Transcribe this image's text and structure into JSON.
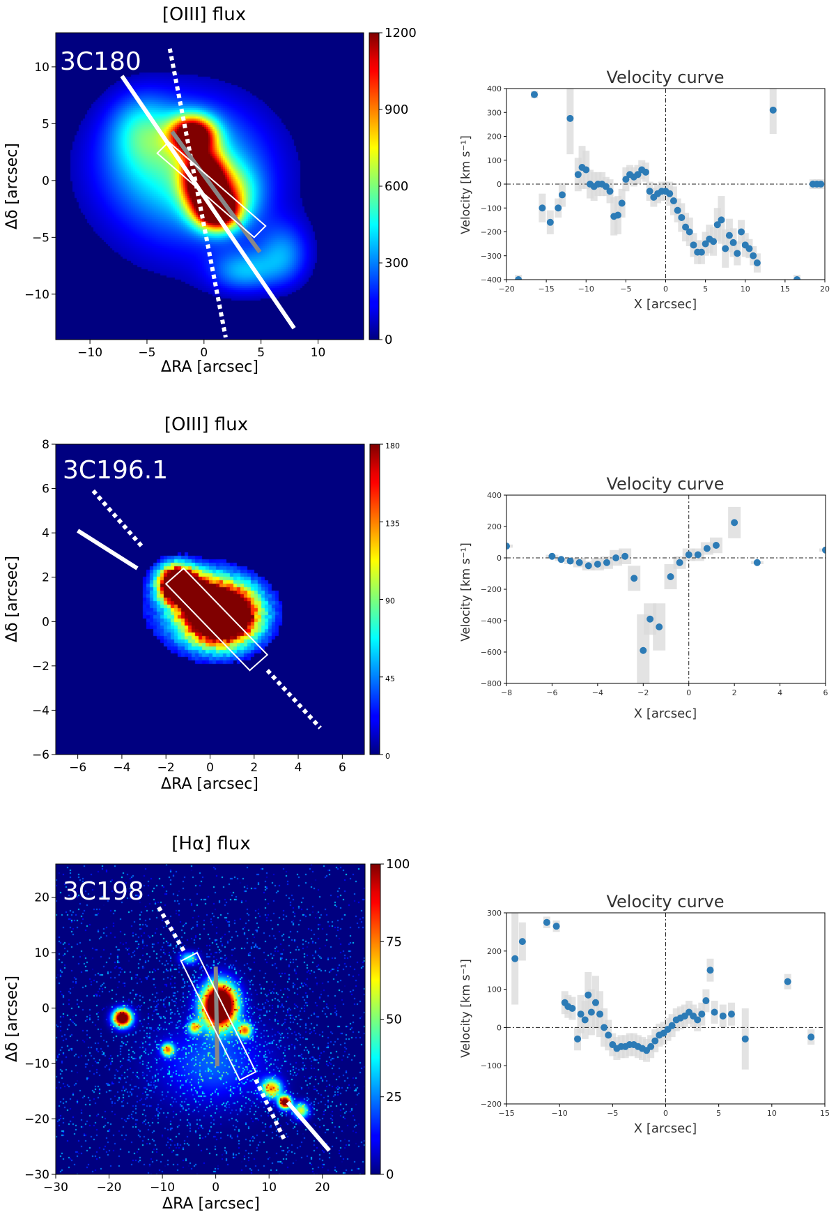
{
  "chart_data": [
    {
      "type": "heatmap",
      "title": "[OIII] flux",
      "object_label": "3C180",
      "xlabel": "ΔRA [arcsec]",
      "ylabel": "Δδ [arcsec]",
      "xlim": [
        -13,
        14
      ],
      "ylim": [
        -14,
        13
      ],
      "xticks": [
        -10,
        -5,
        0,
        5,
        10
      ],
      "yticks": [
        -10,
        -5,
        0,
        5,
        10
      ],
      "colorbar": {
        "range": [
          0,
          1200
        ],
        "ticks": [
          0,
          300,
          600,
          900,
          1200
        ]
      },
      "colormap": "jet",
      "overlays": {
        "solid_line": [
          [
            -7.2,
            9.2
          ],
          [
            7.9,
            -13.0
          ]
        ],
        "dotted_line": [
          [
            -3.0,
            11.6
          ],
          [
            1.9,
            -13.8
          ]
        ],
        "gray_line": [
          [
            -2.8,
            4.3
          ],
          [
            4.9,
            -6.3
          ]
        ],
        "slit_box": [
          [
            -4.1,
            2.4
          ],
          [
            -3.1,
            3.4
          ],
          [
            5.4,
            -4.0
          ],
          [
            4.4,
            -5.0
          ]
        ]
      },
      "blobs": [
        {
          "x": -1.0,
          "y": -0.5,
          "sx": 5.5,
          "sy": 5.0,
          "a": 260
        },
        {
          "x": -5.5,
          "y": 4.5,
          "sx": 1.9,
          "sy": 2.2,
          "a": 260
        },
        {
          "x": -2.5,
          "y": 2.0,
          "sx": 4.5,
          "sy": 3.5,
          "a": 300
        },
        {
          "x": -1.0,
          "y": 4.0,
          "sx": 1.3,
          "sy": 1.1,
          "a": 1250
        },
        {
          "x": 0.0,
          "y": 0.0,
          "sx": 1.2,
          "sy": 1.7,
          "a": 1300
        },
        {
          "x": 1.2,
          "y": -2.7,
          "sx": 1.2,
          "sy": 1.1,
          "a": 1200
        },
        {
          "x": 2.0,
          "y": -1.2,
          "sx": 1.8,
          "sy": 1.8,
          "a": 500
        },
        {
          "x": 3.5,
          "y": -8.0,
          "sx": 2.0,
          "sy": 1.3,
          "a": 300
        },
        {
          "x": 7.0,
          "y": -6.5,
          "sx": 1.6,
          "sy": 1.9,
          "a": 280
        }
      ]
    },
    {
      "type": "scatter",
      "title": "Velocity curve",
      "xlabel": "X [arcsec]",
      "ylabel": "Velocity [km s⁻¹]",
      "xlim": [
        -20,
        20
      ],
      "ylim": [
        -400,
        400
      ],
      "xticks": [
        -20,
        -15,
        -10,
        -5,
        0,
        5,
        10,
        15,
        20
      ],
      "yticks": [
        -400,
        -300,
        -200,
        -100,
        0,
        100,
        200,
        300,
        400
      ],
      "x": [
        -18.5,
        -16.5,
        -15.5,
        -14.5,
        -13.5,
        -13,
        -12,
        -11,
        -10.5,
        -10,
        -9.5,
        -9,
        -8.5,
        -8,
        -7.5,
        -7,
        -6.5,
        -6,
        -5.5,
        -5,
        -4.5,
        -4,
        -3.5,
        -3,
        -2.5,
        -2,
        -1.5,
        -1,
        -0.5,
        0,
        0.5,
        1,
        1.5,
        2,
        2.5,
        3,
        3.5,
        4,
        4.5,
        5,
        5.5,
        6,
        6.5,
        7,
        7.5,
        8,
        8.5,
        9,
        9.5,
        10,
        10.5,
        11,
        11.5,
        13.5,
        16.5,
        18.5,
        19,
        19.5
      ],
      "y": [
        -400,
        375,
        -100,
        -160,
        -100,
        -45,
        275,
        40,
        70,
        60,
        0,
        -10,
        0,
        0,
        -10,
        -30,
        -135,
        -130,
        -80,
        20,
        40,
        30,
        40,
        60,
        50,
        -30,
        -55,
        -40,
        -30,
        -30,
        -40,
        -70,
        -110,
        -140,
        -180,
        -200,
        -255,
        -285,
        -285,
        -250,
        -230,
        -240,
        -170,
        -150,
        -270,
        -215,
        -245,
        -290,
        -200,
        -255,
        -270,
        -300,
        -330,
        310,
        -400,
        0,
        0,
        0
      ],
      "err": [
        20,
        15,
        60,
        50,
        40,
        50,
        150,
        70,
        90,
        80,
        60,
        60,
        50,
        50,
        40,
        50,
        80,
        80,
        60,
        50,
        40,
        40,
        40,
        40,
        40,
        40,
        40,
        40,
        40,
        40,
        50,
        60,
        50,
        60,
        60,
        60,
        50,
        50,
        50,
        50,
        60,
        60,
        70,
        100,
        80,
        70,
        60,
        50,
        50,
        50,
        40,
        40,
        40,
        100,
        20,
        20,
        20,
        20
      ]
    },
    {
      "type": "heatmap",
      "title": "[OIII] flux",
      "object_label": "3C196.1",
      "xlabel": "ΔRA [arcsec]",
      "ylabel": "Δδ [arcsec]",
      "xlim": [
        -7,
        7
      ],
      "ylim": [
        -6,
        8
      ],
      "xticks": [
        -6,
        -4,
        -2,
        0,
        2,
        4,
        6
      ],
      "yticks": [
        -6,
        -4,
        -2,
        0,
        2,
        4,
        6,
        8
      ],
      "colorbar": {
        "range": [
          0,
          180
        ],
        "ticks": [
          0,
          45,
          90,
          135,
          180
        ]
      },
      "colormap": "jet",
      "pixelated": true,
      "overlays": {
        "solid_line": [
          [
            -6.0,
            4.1
          ],
          [
            -3.3,
            2.4
          ]
        ],
        "dotted_line": [
          [
            -5.3,
            5.9
          ],
          [
            -3.1,
            3.4
          ]
        ],
        "dotted_line_2": [
          [
            2.6,
            -2.2
          ],
          [
            5.0,
            -4.8
          ]
        ],
        "slit_box": [
          [
            -2.0,
            1.7
          ],
          [
            -1.2,
            2.4
          ],
          [
            2.6,
            -1.5
          ],
          [
            1.8,
            -2.2
          ]
        ]
      },
      "blobs": [
        {
          "x": -0.5,
          "y": 0.6,
          "sx": 2.2,
          "sy": 1.5,
          "a": 40
        },
        {
          "x": 0.5,
          "y": 0.3,
          "sx": 1.1,
          "sy": 0.9,
          "a": 320
        },
        {
          "x": -1.5,
          "y": 1.7,
          "sx": 0.55,
          "sy": 0.55,
          "a": 280
        },
        {
          "x": -0.5,
          "y": 1.2,
          "sx": 0.6,
          "sy": 0.6,
          "a": 120
        }
      ]
    },
    {
      "type": "scatter",
      "title": "Velocity curve",
      "xlabel": "X [arcsec]",
      "ylabel": "Velocity [km s⁻¹]",
      "xlim": [
        -8,
        6
      ],
      "ylim": [
        -800,
        400
      ],
      "xticks": [
        -8,
        -6,
        -4,
        -2,
        0,
        2,
        4,
        6
      ],
      "yticks": [
        -800,
        -600,
        -400,
        -200,
        0,
        200,
        400
      ],
      "x": [
        -8,
        -6,
        -5.6,
        -5.2,
        -4.8,
        -4.4,
        -4,
        -3.6,
        -3.2,
        -2.8,
        -2.4,
        -2,
        -1.7,
        -1.3,
        -0.8,
        -0.4,
        0,
        0.4,
        0.8,
        1.2,
        2,
        3,
        6
      ],
      "y": [
        75,
        10,
        -10,
        -20,
        -30,
        -50,
        -40,
        -30,
        0,
        10,
        -130,
        -590,
        -390,
        -440,
        -120,
        -30,
        20,
        20,
        60,
        80,
        225,
        -30,
        50
      ],
      "err": [
        10,
        10,
        10,
        20,
        30,
        30,
        40,
        40,
        50,
        50,
        80,
        230,
        100,
        150,
        80,
        40,
        40,
        40,
        40,
        50,
        100,
        10,
        10
      ]
    },
    {
      "type": "heatmap",
      "title": "[Hα] flux",
      "object_label": "3C198",
      "xlabel": "ΔRA [arcsec]",
      "ylabel": "Δδ [arcsec]",
      "xlim": [
        -30,
        28
      ],
      "ylim": [
        -30,
        26
      ],
      "xticks": [
        -30,
        -20,
        -10,
        0,
        10,
        20
      ],
      "yticks": [
        -30,
        -20,
        -10,
        0,
        10,
        20
      ],
      "colorbar": {
        "range": [
          0,
          100
        ],
        "ticks": [
          0,
          25,
          50,
          75,
          100
        ]
      },
      "colormap": "jet",
      "noisy": true,
      "overlays": {
        "solid_line": [
          [
            13.5,
            -17.0
          ],
          [
            21.3,
            -25.7
          ]
        ],
        "dotted_line": [
          [
            -10.7,
            18.2
          ],
          [
            -5.8,
            10.0
          ]
        ],
        "dotted_line_2": [
          [
            7.5,
            -12.9
          ],
          [
            13.0,
            -24.0
          ]
        ],
        "gray_line": [
          [
            0.0,
            7.5
          ],
          [
            0.3,
            -10.5
          ]
        ],
        "slit_box": [
          [
            -6.5,
            8.5
          ],
          [
            -3.5,
            10.0
          ],
          [
            7.5,
            -11.5
          ],
          [
            4.5,
            -13.0
          ]
        ]
      },
      "blobs": [
        {
          "x": -17.5,
          "y": -1.8,
          "sx": 1.2,
          "sy": 1.1,
          "a": 130
        },
        {
          "x": 0.7,
          "y": 0.5,
          "sx": 2.2,
          "sy": 2.7,
          "a": 160
        },
        {
          "x": -0.5,
          "y": -10.0,
          "sx": 7.0,
          "sy": 5.0,
          "a": 22
        },
        {
          "x": 5.5,
          "y": -4.0,
          "sx": 0.9,
          "sy": 0.9,
          "a": 70
        },
        {
          "x": 13.0,
          "y": -17.0,
          "sx": 0.8,
          "sy": 0.8,
          "a": 120
        },
        {
          "x": 10.5,
          "y": -14.5,
          "sx": 1.3,
          "sy": 1.2,
          "a": 70
        },
        {
          "x": 16.0,
          "y": -18.5,
          "sx": 1.0,
          "sy": 1.0,
          "a": 60
        },
        {
          "x": -9.0,
          "y": -7.5,
          "sx": 0.8,
          "sy": 0.8,
          "a": 70
        },
        {
          "x": -4.0,
          "y": -3.5,
          "sx": 0.8,
          "sy": 0.8,
          "a": 60
        },
        {
          "x": -5.0,
          "y": 9.0,
          "sx": 1.2,
          "sy": 0.8,
          "a": 40
        }
      ]
    },
    {
      "type": "scatter",
      "title": "Velocity curve",
      "xlabel": "X [arcsec]",
      "ylabel": "Velocity [km s⁻¹]",
      "xlim": [
        -15,
        15
      ],
      "ylim": [
        -200,
        300
      ],
      "xticks": [
        -15,
        -10,
        -5,
        0,
        5,
        10,
        15
      ],
      "yticks": [
        -200,
        -100,
        0,
        100,
        200,
        300
      ],
      "x": [
        -14.2,
        -13.5,
        -11.2,
        -10.3,
        -9.5,
        -9.2,
        -8.8,
        -8.3,
        -8,
        -7.6,
        -7.3,
        -7,
        -6.6,
        -6.2,
        -5.8,
        -5.4,
        -5,
        -4.6,
        -4.2,
        -3.8,
        -3.4,
        -3,
        -2.6,
        -2.2,
        -1.8,
        -1.4,
        -1,
        -0.6,
        -0.2,
        0.2,
        0.6,
        1,
        1.4,
        1.8,
        2.2,
        2.6,
        3,
        3.4,
        3.8,
        4.2,
        4.6,
        5.4,
        6.2,
        7.5,
        11.5,
        13.7
      ],
      "y": [
        180,
        225,
        275,
        265,
        65,
        55,
        50,
        -30,
        35,
        20,
        85,
        40,
        65,
        35,
        0,
        -20,
        -45,
        -55,
        -50,
        -50,
        -45,
        -45,
        -50,
        -55,
        -60,
        -50,
        -35,
        -20,
        -15,
        -5,
        5,
        20,
        25,
        30,
        40,
        30,
        20,
        35,
        70,
        150,
        40,
        30,
        35,
        -30,
        120,
        -25
      ],
      "err": [
        120,
        50,
        15,
        15,
        30,
        30,
        30,
        30,
        50,
        50,
        60,
        60,
        70,
        60,
        50,
        40,
        30,
        30,
        30,
        30,
        30,
        30,
        30,
        30,
        30,
        30,
        30,
        30,
        30,
        30,
        30,
        30,
        30,
        30,
        30,
        30,
        30,
        30,
        30,
        30,
        30,
        30,
        30,
        80,
        20,
        20
      ]
    }
  ]
}
